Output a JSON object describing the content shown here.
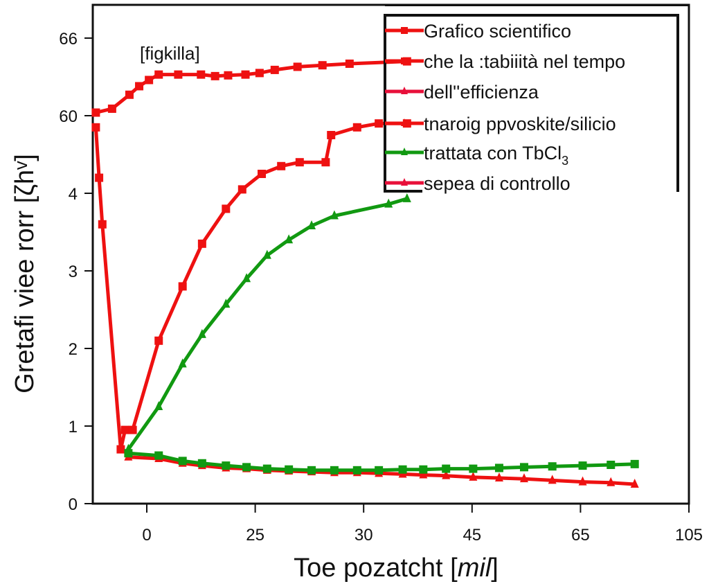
{
  "chart_data": {
    "type": "line",
    "title": "",
    "xlabel": "Toe pozatcht [mil]",
    "xlabel_parts": [
      "Toe pozatcht [",
      "mil",
      "]"
    ],
    "ylabel": "Gretafi viee rorr  [ζhᵛ]",
    "annotation": "[fiɡkilla]",
    "x_tick_labels": [
      "0",
      "25",
      "30",
      "45",
      "65",
      "105"
    ],
    "y_tick_labels": [
      "0",
      "1",
      "2",
      "3",
      "4",
      "60",
      "66"
    ],
    "x_scale_note": "ticks evenly spaced; x values given in tick-index units (0 = first tick '0', 5 = last tick '105')",
    "y_scale_note": "ticks evenly spaced; y values given in tick-index units (0 = '0', 6 = '66')",
    "xlim": [
      -0.5,
      5.0
    ],
    "ylim": [
      0,
      6.45
    ],
    "grid": false,
    "legend_position": "top-right",
    "legend": [
      {
        "label": "Grafico scientifico",
        "color": "#ee1111",
        "marker": "square"
      },
      {
        "label": "che la :tabiiità nel tempo",
        "color": "#ee1111",
        "marker": "square"
      },
      {
        "label": "dell''efficienza",
        "color": "#e8103a",
        "marker": "triangle"
      },
      {
        "label": "tnaroiɡ ppvoskite/silicio",
        "color": "#ee1111",
        "marker": "triangle"
      },
      {
        "label": "trattata con TbCl",
        "sub": "3",
        "color": "#119911",
        "marker": "triangle"
      },
      {
        "label": "sepea di controllo",
        "color": "#e8103a",
        "marker": "triangle"
      }
    ],
    "series": [
      {
        "name": "Grafico scientifico (upper red)",
        "color": "#ee1111",
        "marker": "square",
        "x": [
          -0.47,
          -0.32,
          -0.16,
          -0.07,
          0.02,
          0.11,
          0.29,
          0.5,
          0.63,
          0.75,
          0.91,
          1.04,
          1.18,
          1.39,
          1.62,
          1.87,
          2.4
        ],
        "y": [
          5.04,
          5.09,
          5.27,
          5.38,
          5.46,
          5.53,
          5.53,
          5.53,
          5.51,
          5.52,
          5.53,
          5.55,
          5.59,
          5.63,
          5.65,
          5.67,
          5.7
        ]
      },
      {
        "name": "che la stabilità (drop + rise red)",
        "color": "#ee1111",
        "marker": "square",
        "x": [
          -0.47,
          -0.44,
          -0.41,
          -0.24,
          -0.2,
          -0.13,
          0.11,
          0.33,
          0.51,
          0.73,
          0.88,
          1.06,
          1.24,
          1.41,
          1.65,
          1.7,
          1.94,
          2.14,
          2.4
        ],
        "y": [
          4.85,
          4.2,
          3.6,
          0.7,
          0.95,
          0.95,
          2.1,
          2.8,
          3.35,
          3.8,
          4.05,
          4.25,
          4.35,
          4.4,
          4.4,
          4.75,
          4.85,
          4.9,
          4.9
        ]
      },
      {
        "name": "trattata con TbCl3 (green rise)",
        "color": "#119911",
        "marker": "triangle",
        "x": [
          -0.17,
          0.11,
          0.33,
          0.51,
          0.73,
          0.92,
          1.11,
          1.31,
          1.52,
          1.73,
          2.23,
          2.4
        ],
        "y": [
          0.7,
          1.25,
          1.8,
          2.18,
          2.57,
          2.9,
          3.2,
          3.4,
          3.58,
          3.71,
          3.86,
          3.93
        ]
      },
      {
        "name": "sepea di controllo (lower red)",
        "color": "#ee1111",
        "marker": "triangle",
        "x": [
          -0.17,
          0.11,
          0.33,
          0.51,
          0.73,
          0.92,
          1.11,
          1.31,
          1.52,
          1.73,
          1.94,
          2.14,
          2.36,
          2.55,
          2.76,
          3.01,
          3.25,
          3.48,
          3.74,
          4.02,
          4.28,
          4.5
        ],
        "y": [
          0.6,
          0.58,
          0.52,
          0.49,
          0.46,
          0.45,
          0.43,
          0.42,
          0.41,
          0.4,
          0.4,
          0.39,
          0.38,
          0.37,
          0.36,
          0.34,
          0.33,
          0.32,
          0.3,
          0.28,
          0.27,
          0.25
        ]
      },
      {
        "name": "trattata con TbCl3 (lower green)",
        "color": "#119911",
        "marker": "square",
        "x": [
          -0.17,
          0.11,
          0.33,
          0.51,
          0.73,
          0.92,
          1.11,
          1.31,
          1.52,
          1.73,
          1.94,
          2.14,
          2.36,
          2.55,
          2.76,
          3.01,
          3.25,
          3.48,
          3.74,
          4.02,
          4.28,
          4.5
        ],
        "y": [
          0.65,
          0.62,
          0.55,
          0.52,
          0.49,
          0.47,
          0.45,
          0.44,
          0.43,
          0.43,
          0.43,
          0.43,
          0.44,
          0.44,
          0.45,
          0.45,
          0.46,
          0.47,
          0.48,
          0.49,
          0.5,
          0.51
        ]
      }
    ]
  }
}
